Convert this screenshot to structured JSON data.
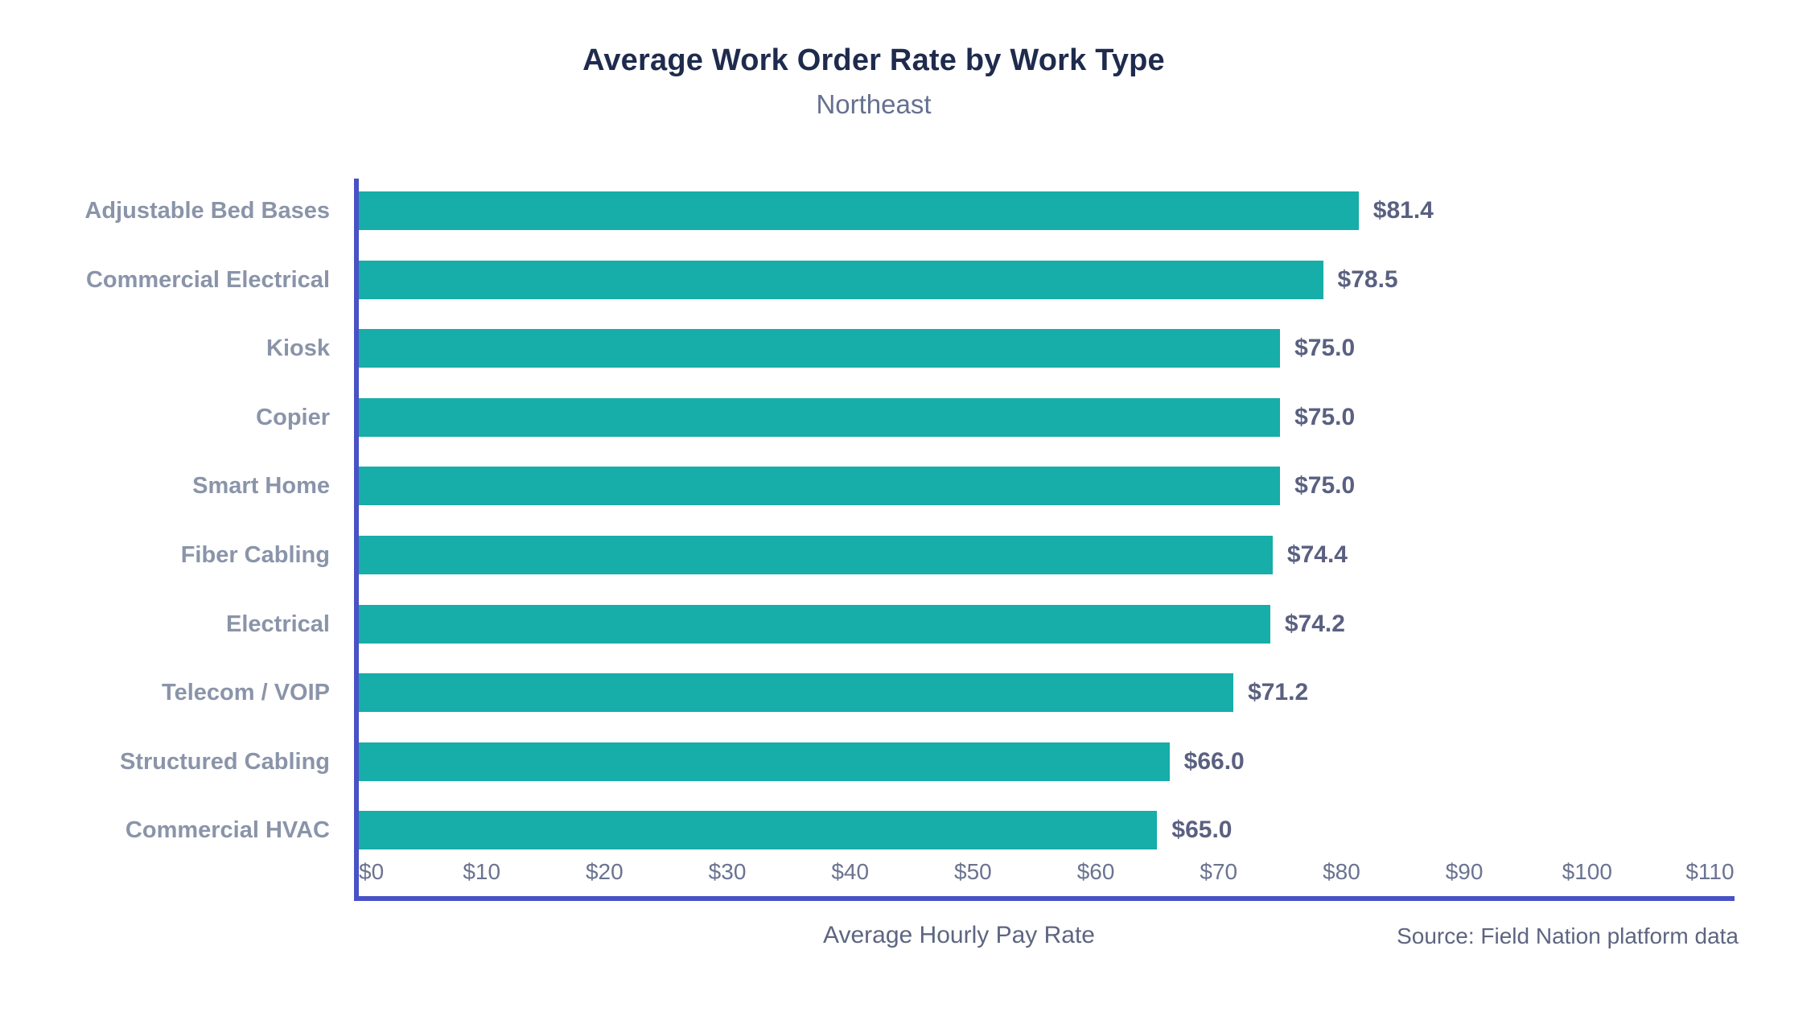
{
  "page": {
    "title": "Average Work Order Rate by Work Type",
    "subtitle": "Northeast",
    "xaxis_title": "Average Hourly Pay Rate",
    "source": "Source: Field Nation platform data"
  },
  "colors": {
    "bar": "#17ada9",
    "axis": "#4852c5",
    "title": "#1e2b4d",
    "subtitle": "#667090",
    "category_label": "#8a94a9",
    "value_label": "#5a6080",
    "tick_label": "#6a7390",
    "footer_text": "#5d6580"
  },
  "chart_data": {
    "type": "bar",
    "orientation": "horizontal",
    "title": "Average Work Order Rate by Work Type",
    "subtitle": "Northeast",
    "xlabel": "Average Hourly Pay Rate",
    "ylabel": "",
    "source": "Source: Field Nation platform data",
    "categories": [
      "Adjustable Bed Bases",
      "Commercial Electrical",
      "Kiosk",
      "Copier",
      "Smart Home",
      "Fiber Cabling",
      "Electrical",
      "Telecom / VOIP",
      "Structured Cabling",
      "Commercial HVAC"
    ],
    "values": [
      81.4,
      78.5,
      75.0,
      75.0,
      75.0,
      74.4,
      74.2,
      71.2,
      66.0,
      65.0
    ],
    "value_labels": [
      "$81.4",
      "$78.5",
      "$75.0",
      "$75.0",
      "$75.0",
      "$74.4",
      "$74.2",
      "$71.2",
      "$66.0",
      "$65.0"
    ],
    "xlim": [
      0,
      112
    ],
    "xticks": [
      0,
      10,
      20,
      30,
      40,
      50,
      60,
      70,
      80,
      90,
      100,
      110
    ],
    "xtick_labels": [
      "$0",
      "$10",
      "$20",
      "$30",
      "$40",
      "$50",
      "$60",
      "$70",
      "$80",
      "$90",
      "$100",
      "$110"
    ],
    "grid": false,
    "legend": null,
    "bar_color": "#17ada9"
  }
}
